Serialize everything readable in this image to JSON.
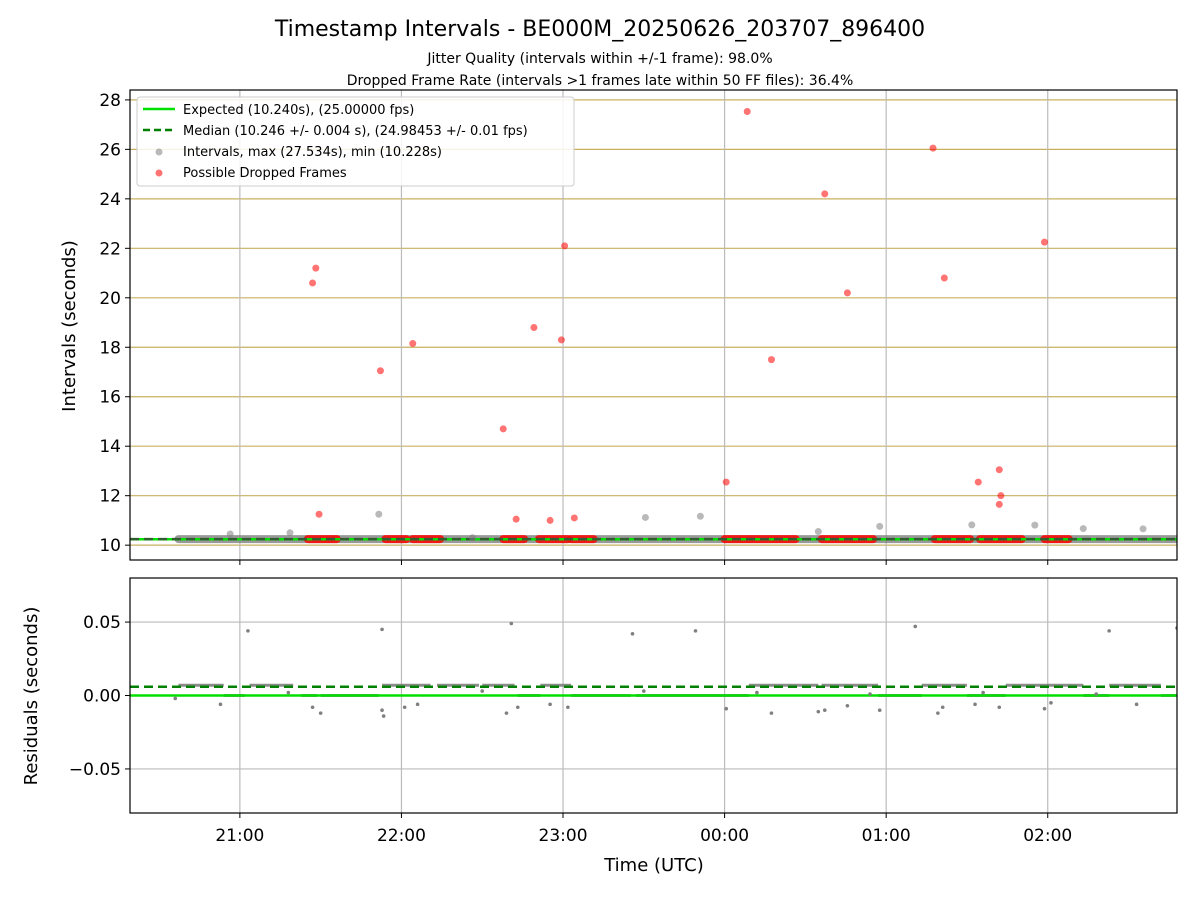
{
  "figure": {
    "title": "Timestamp Intervals - BE000M_20250626_203707_896400",
    "subtitle_1": "Jitter Quality (intervals within +/-1 frame): 98.0%",
    "subtitle_2": "Dropped Frame Rate (intervals >1 frames late within 50 FF files): 36.4%"
  },
  "colors": {
    "expected": "#00e000",
    "median": "#008000",
    "intervals": "#808080",
    "dropped": "#ff0000",
    "hgrid": "#c8b060",
    "vgrid": "#bbbbbb"
  },
  "chart_data": [
    {
      "type": "scatter",
      "panel": "top",
      "xlabel": "",
      "ylabel": "Intervals (seconds)",
      "ylim": [
        9.4,
        28.4
      ],
      "xlim_hours": [
        20.32,
        26.8
      ],
      "x_ticks": [
        {
          "hour": 21,
          "label": "21:00"
        },
        {
          "hour": 22,
          "label": "22:00"
        },
        {
          "hour": 23,
          "label": "23:00"
        },
        {
          "hour": 24,
          "label": "00:00"
        },
        {
          "hour": 25,
          "label": "01:00"
        },
        {
          "hour": 26,
          "label": "02:00"
        }
      ],
      "y_ticks": [
        10,
        12,
        14,
        16,
        18,
        20,
        22,
        24,
        26,
        28
      ],
      "grid": "on",
      "legend_position": "top-left",
      "legend": [
        "Expected (10.240s), (25.00000 fps)",
        "Median (10.246 +/- 0.004 s), (24.98453 +/- 0.01 fps)",
        "Intervals, max (27.534s), min (10.228s)",
        "Possible Dropped Frames"
      ],
      "expected_value": 10.24,
      "median_value": 10.246,
      "baseline_range_hours": [
        20.62,
        26.8
      ],
      "dropped_bands_hours": [
        [
          21.42,
          21.6
        ],
        [
          21.9,
          22.03
        ],
        [
          22.07,
          22.24
        ],
        [
          22.63,
          22.76
        ],
        [
          22.85,
          23.03
        ],
        [
          23.05,
          23.19
        ],
        [
          24.0,
          24.44
        ],
        [
          24.6,
          24.92
        ],
        [
          25.3,
          25.52
        ],
        [
          25.58,
          25.84
        ],
        [
          25.98,
          26.13
        ]
      ],
      "series": [
        {
          "name": "Intervals, max (27.534s), min (10.228s)",
          "points": [
            [
              20.94,
              10.45
            ],
            [
              21.31,
              10.5
            ],
            [
              21.86,
              11.25
            ],
            [
              22.44,
              10.3
            ],
            [
              23.51,
              11.12
            ],
            [
              23.85,
              11.17
            ],
            [
              24.58,
              10.55
            ],
            [
              24.96,
              10.76
            ],
            [
              25.53,
              10.82
            ],
            [
              25.92,
              10.81
            ],
            [
              26.22,
              10.67
            ],
            [
              26.59,
              10.66
            ]
          ]
        },
        {
          "name": "Possible Dropped Frames",
          "points": [
            [
              21.45,
              20.6
            ],
            [
              21.47,
              21.2
            ],
            [
              21.49,
              11.25
            ],
            [
              21.87,
              17.05
            ],
            [
              22.07,
              18.15
            ],
            [
              22.63,
              14.7
            ],
            [
              22.71,
              11.05
            ],
            [
              22.82,
              18.8
            ],
            [
              22.92,
              11.0
            ],
            [
              22.99,
              18.3
            ],
            [
              23.01,
              22.1
            ],
            [
              23.07,
              11.1
            ],
            [
              24.01,
              12.55
            ],
            [
              24.14,
              27.53
            ],
            [
              24.29,
              17.5
            ],
            [
              24.62,
              24.2
            ],
            [
              24.76,
              20.2
            ],
            [
              25.29,
              26.05
            ],
            [
              25.36,
              20.8
            ],
            [
              25.57,
              12.55
            ],
            [
              25.7,
              11.65
            ],
            [
              25.71,
              12.0
            ],
            [
              25.7,
              13.05
            ],
            [
              25.98,
              22.25
            ]
          ]
        }
      ]
    },
    {
      "type": "scatter",
      "panel": "bottom",
      "xlabel": "Time (UTC)",
      "ylabel": "Residuals (seconds)",
      "ylim": [
        -0.08,
        0.08
      ],
      "y_ticks": [
        -0.05,
        0.0,
        0.05
      ],
      "y_tick_labels": [
        "−0.05",
        "0.00",
        "0.05"
      ],
      "grid": "on",
      "expected_value": 0.0,
      "median_value": 0.006,
      "segments": [
        {
          "range_hours": [
            20.62,
            20.9
          ],
          "level": 0.007
        },
        {
          "range_hours": [
            20.9,
            21.03
          ],
          "level": 0.0
        },
        {
          "range_hours": [
            21.06,
            21.33
          ],
          "level": 0.007
        },
        {
          "range_hours": [
            21.38,
            21.48
          ],
          "level": 0.0
        },
        {
          "range_hours": [
            21.5,
            21.86
          ],
          "level": 0.0
        },
        {
          "range_hours": [
            21.88,
            22.18
          ],
          "level": 0.007
        },
        {
          "range_hours": [
            22.22,
            22.48
          ],
          "level": 0.007
        },
        {
          "range_hours": [
            22.5,
            22.7
          ],
          "level": 0.007
        },
        {
          "range_hours": [
            22.72,
            22.86
          ],
          "level": 0.0
        },
        {
          "range_hours": [
            22.86,
            23.05
          ],
          "level": 0.007
        },
        {
          "range_hours": [
            23.05,
            23.42
          ],
          "level": 0.0
        },
        {
          "range_hours": [
            23.45,
            23.9
          ],
          "level": 0.0
        },
        {
          "range_hours": [
            23.9,
            24.15
          ],
          "level": 0.0
        },
        {
          "range_hours": [
            24.15,
            24.58
          ],
          "level": 0.007
        },
        {
          "range_hours": [
            24.6,
            24.95
          ],
          "level": 0.007
        },
        {
          "range_hours": [
            24.95,
            25.22
          ],
          "level": 0.0
        },
        {
          "range_hours": [
            25.22,
            25.5
          ],
          "level": 0.007
        },
        {
          "range_hours": [
            25.5,
            25.74
          ],
          "level": 0.0
        },
        {
          "range_hours": [
            25.74,
            25.98
          ],
          "level": 0.007
        },
        {
          "range_hours": [
            25.98,
            26.22
          ],
          "level": 0.007
        },
        {
          "range_hours": [
            26.22,
            26.38
          ],
          "level": 0.0
        },
        {
          "range_hours": [
            26.38,
            26.7
          ],
          "level": 0.007
        },
        {
          "range_hours": [
            26.7,
            26.8
          ],
          "level": 0.0
        }
      ],
      "series": [
        {
          "name": "residuals",
          "points": [
            [
              21.05,
              0.044
            ],
            [
              21.88,
              0.045
            ],
            [
              22.68,
              0.049
            ],
            [
              23.43,
              0.042
            ],
            [
              23.82,
              0.044
            ],
            [
              25.18,
              0.047
            ],
            [
              26.38,
              0.044
            ],
            [
              26.8,
              0.046
            ],
            [
              20.88,
              -0.006
            ],
            [
              21.45,
              -0.008
            ],
            [
              21.5,
              -0.012
            ],
            [
              21.88,
              -0.01
            ],
            [
              21.89,
              -0.014
            ],
            [
              22.02,
              -0.008
            ],
            [
              22.1,
              -0.006
            ],
            [
              22.65,
              -0.012
            ],
            [
              22.72,
              -0.008
            ],
            [
              22.92,
              -0.006
            ],
            [
              23.03,
              -0.008
            ],
            [
              24.01,
              -0.009
            ],
            [
              24.29,
              -0.012
            ],
            [
              24.58,
              -0.011
            ],
            [
              24.62,
              -0.01
            ],
            [
              24.76,
              -0.007
            ],
            [
              24.96,
              -0.01
            ],
            [
              25.32,
              -0.012
            ],
            [
              25.35,
              -0.008
            ],
            [
              25.55,
              -0.006
            ],
            [
              25.7,
              -0.008
            ],
            [
              25.98,
              -0.009
            ],
            [
              26.02,
              -0.005
            ],
            [
              26.55,
              -0.006
            ],
            [
              20.6,
              -0.002
            ],
            [
              21.3,
              0.002
            ],
            [
              22.5,
              0.003
            ],
            [
              23.5,
              0.003
            ],
            [
              24.2,
              0.002
            ],
            [
              24.9,
              0.001
            ],
            [
              25.6,
              0.002
            ],
            [
              26.3,
              0.001
            ]
          ]
        }
      ]
    }
  ]
}
